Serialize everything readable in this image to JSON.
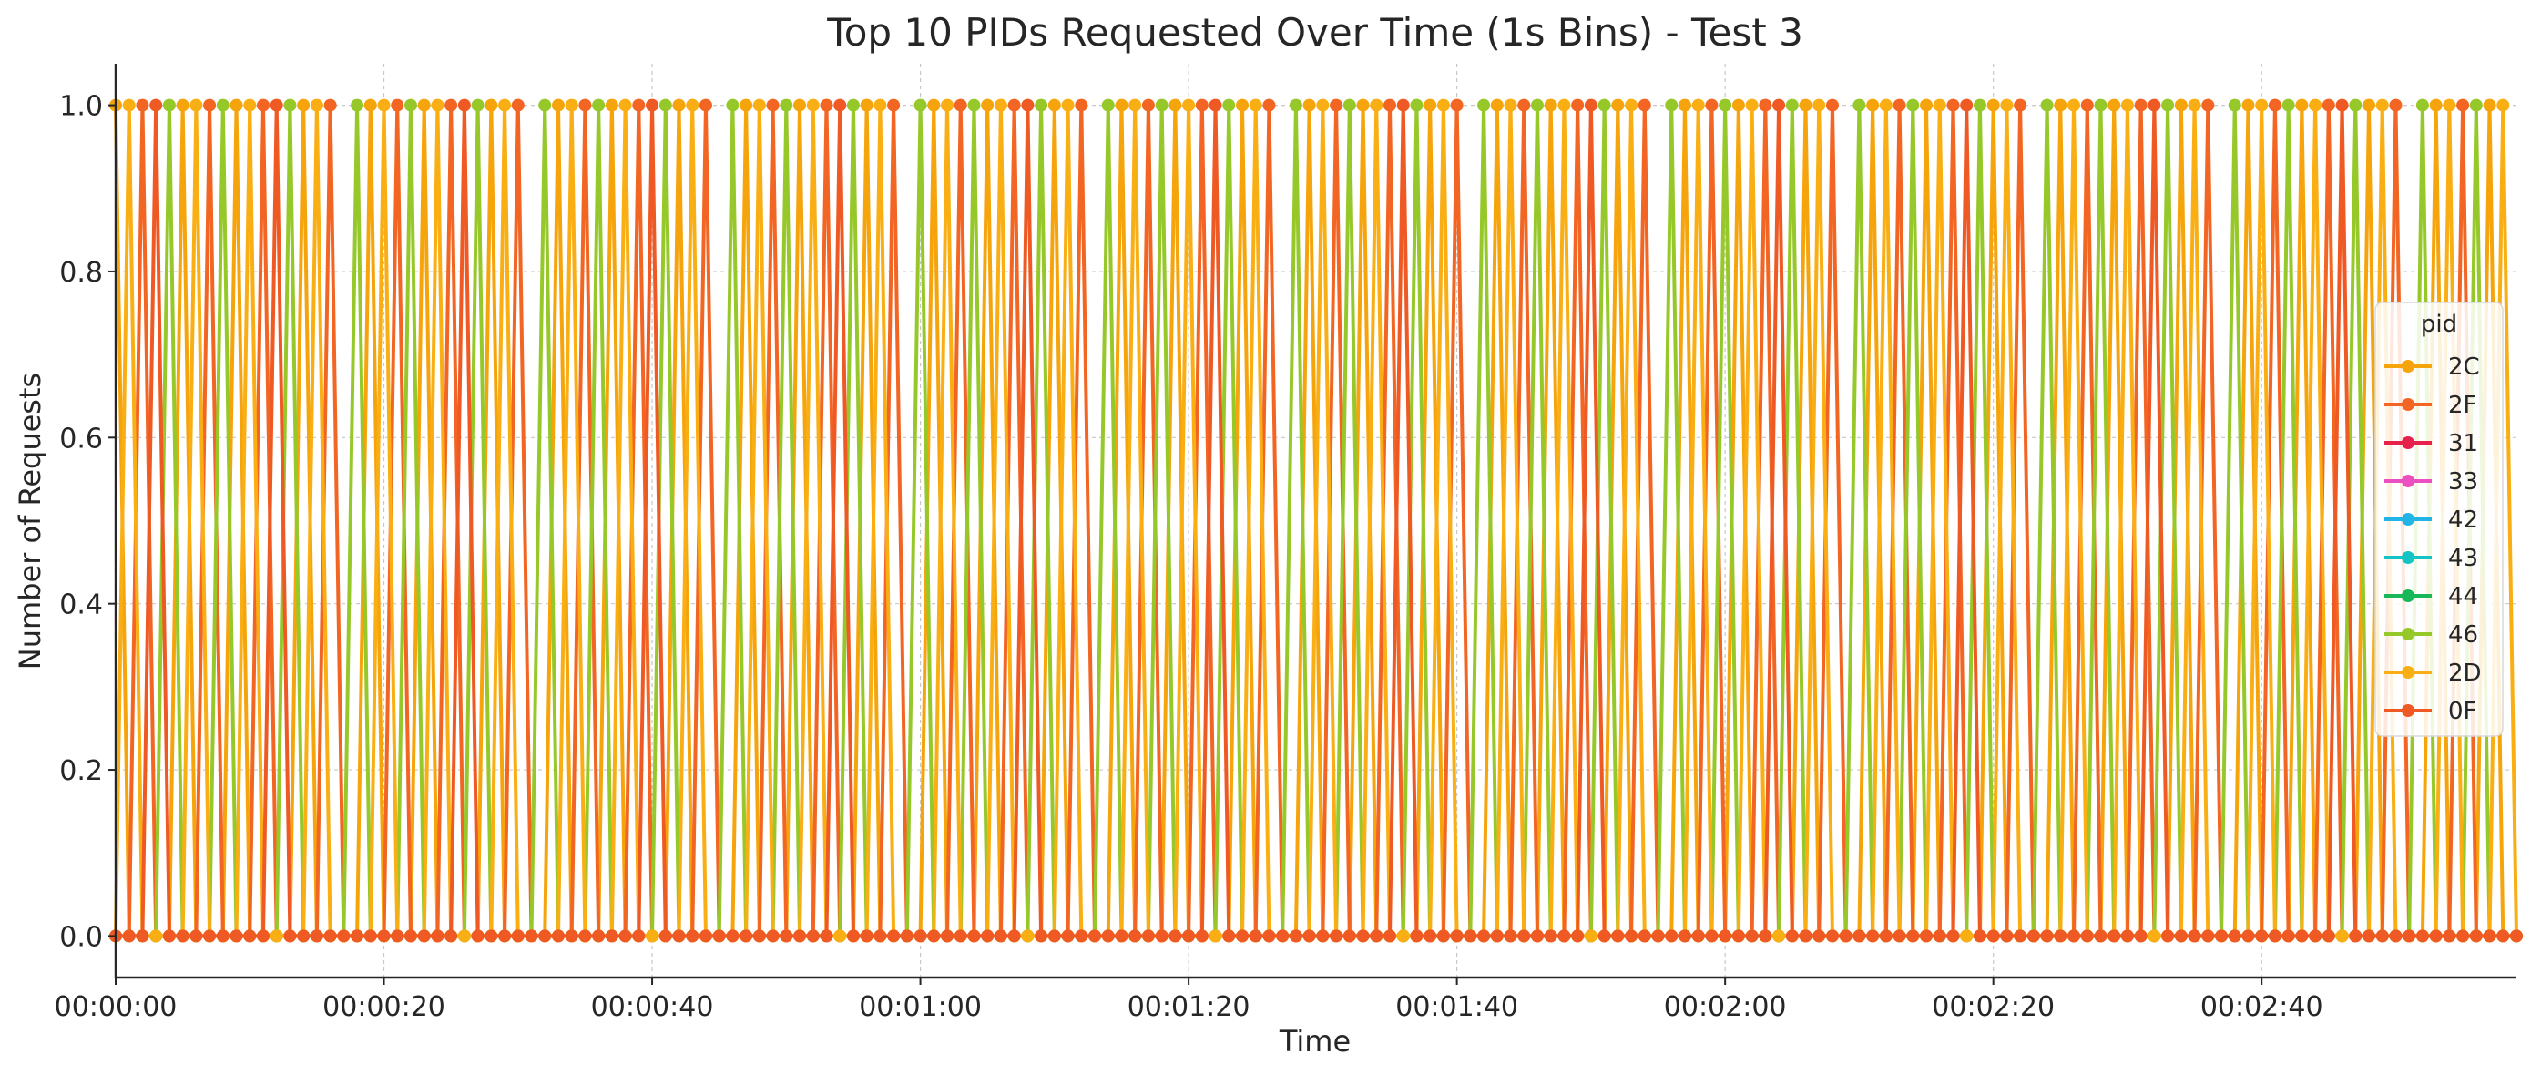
{
  "chart_data": {
    "type": "line",
    "title": "Top 10 PIDs Requested Over Time (1s Bins) - Test 3",
    "xlabel": "Time",
    "ylabel": "Number of Requests",
    "ylim": [
      -0.05,
      1.05
    ],
    "xlim_seconds": [
      0,
      179
    ],
    "x_ticks": [
      "00:00:00",
      "00:00:20",
      "00:00:40",
      "00:01:00",
      "00:01:20",
      "00:01:40",
      "00:02:00",
      "00:02:20",
      "00:02:40"
    ],
    "y_ticks": [
      "0.0",
      "0.2",
      "0.4",
      "0.6",
      "0.8",
      "1.0"
    ],
    "grid": true,
    "legend": {
      "title": "pid",
      "placement": "right"
    },
    "x_start": "00:00:00",
    "x_step": "1s",
    "series": [
      {
        "name": "2C",
        "color": "#f5a40c",
        "active": [
          0,
          5,
          9,
          14,
          19,
          23,
          28,
          33,
          37,
          42,
          47,
          51,
          56,
          61,
          65,
          70,
          75,
          79,
          84,
          89,
          93,
          98,
          103,
          107,
          112,
          117,
          121,
          126,
          131,
          135,
          140,
          145,
          149,
          154,
          159,
          163,
          168,
          173,
          177
        ]
      },
      {
        "name": "2F",
        "color": "#f26522",
        "active": [
          2,
          7,
          11,
          16,
          21,
          25,
          30,
          35,
          39,
          44,
          49,
          53,
          58,
          63,
          67,
          72,
          77,
          81,
          86,
          91,
          95,
          100,
          105,
          109,
          114,
          119,
          123,
          128,
          133,
          137,
          142,
          147,
          151,
          156,
          161,
          165,
          170,
          175
        ]
      },
      {
        "name": "31",
        "color": "#e6224c",
        "active": []
      },
      {
        "name": "33",
        "color": "#ec4fc0",
        "active": []
      },
      {
        "name": "42",
        "color": "#22b4e6",
        "active": []
      },
      {
        "name": "43",
        "color": "#14c4c4",
        "active": []
      },
      {
        "name": "44",
        "color": "#18b85a",
        "active": []
      },
      {
        "name": "46",
        "color": "#96c82a",
        "active": [
          4,
          8,
          13,
          18,
          22,
          27,
          32,
          36,
          41,
          46,
          50,
          55,
          60,
          64,
          69,
          74,
          78,
          83,
          88,
          92,
          97,
          102,
          106,
          111,
          116,
          120,
          125,
          130,
          134,
          139,
          144,
          148,
          153,
          158,
          162,
          167,
          172,
          176
        ]
      },
      {
        "name": "2D",
        "color": "#f9ae14",
        "active": [
          1,
          6,
          10,
          15,
          20,
          24,
          29,
          34,
          38,
          43,
          48,
          52,
          57,
          62,
          66,
          71,
          76,
          80,
          85,
          90,
          94,
          99,
          104,
          108,
          113,
          118,
          122,
          127,
          132,
          136,
          141,
          146,
          150,
          155,
          160,
          164,
          169,
          174,
          178
        ]
      },
      {
        "name": "0F",
        "color": "#ef5a24",
        "active": [
          3,
          12,
          26,
          40,
          54,
          68,
          82,
          96,
          110,
          124,
          138,
          152,
          166
        ]
      }
    ]
  }
}
